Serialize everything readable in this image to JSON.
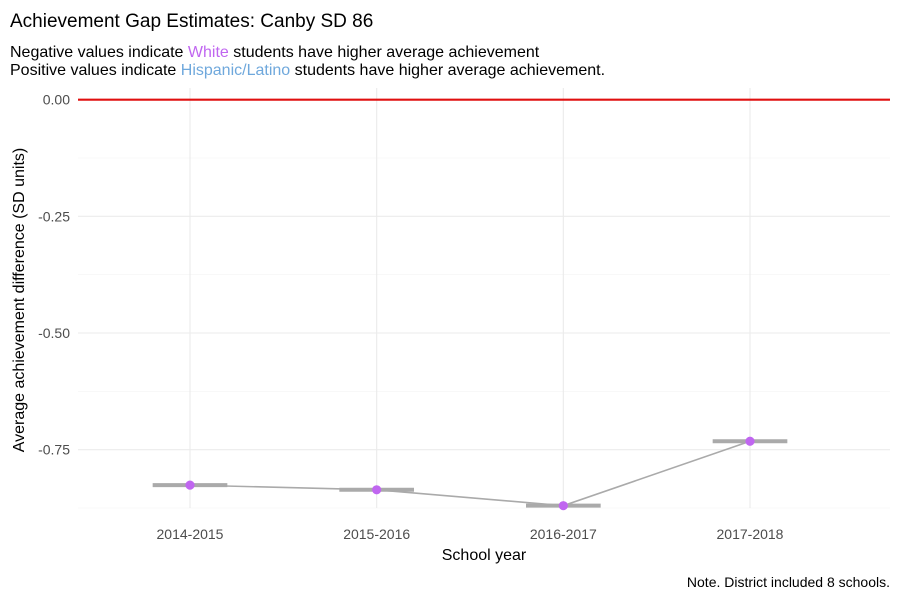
{
  "chart_data": {
    "type": "line",
    "title": "Achievement Gap Estimates: Canby SD 86",
    "subtitle": {
      "line1": {
        "prefix": "Negative values indicate ",
        "highlight": "White",
        "suffix": " students have higher average achievement"
      },
      "line2": {
        "prefix": "Positive values indicate ",
        "highlight": "Hispanic/Latino",
        "suffix": " students have higher average achievement."
      }
    },
    "xlabel": "School year",
    "ylabel": "Average achievement difference (SD units)",
    "caption": "Note. District included 8 schools.",
    "categories": [
      "2014-2015",
      "2015-2016",
      "2016-2017",
      "2017-2018"
    ],
    "values": [
      -0.826,
      -0.836,
      -0.87,
      -0.732
    ],
    "ylim": [
      -0.875,
      0.025
    ],
    "yticks": [
      0.0,
      -0.25,
      -0.5,
      -0.75
    ],
    "ytick_labels": [
      "0.00",
      "-0.25",
      "-0.50",
      "-0.75"
    ],
    "reference_line": 0.0,
    "grid": true,
    "legend": "none",
    "colors": {
      "point": "#c066f0",
      "white_label": "#c066f0",
      "hispanic_label": "#6fa8dc",
      "line": "#aaaaaa",
      "bar": "#aaaaaa",
      "reference": "#e01010"
    }
  }
}
